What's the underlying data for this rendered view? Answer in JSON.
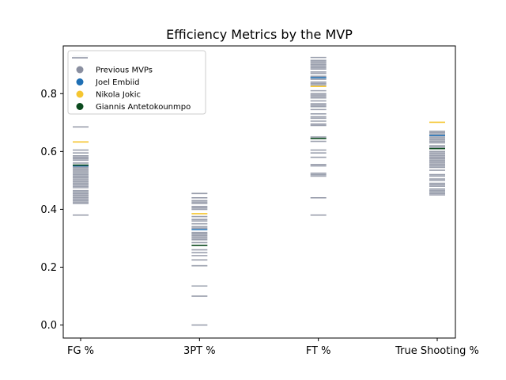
{
  "chart_data": {
    "type": "scatter",
    "title": "Efficiency Metrics by the MVP",
    "xlabel": "",
    "ylabel": "",
    "categories": [
      "FG %",
      "3PT %",
      "FT %",
      "True Shooting %"
    ],
    "ylim": [
      -0.045,
      0.965
    ],
    "yticks": [
      0.0,
      0.2,
      0.4,
      0.6,
      0.8
    ],
    "ytick_labels": [
      "0.0",
      "0.2",
      "0.4",
      "0.6",
      "0.8"
    ],
    "grid": false,
    "marker": "horizontal-line",
    "legend_position": "top-left",
    "colors": {
      "Previous MVPs": "#8a8fa0",
      "Joel Embiid": "#1f6fb4",
      "Nikola Jokic": "#f5c631",
      "Giannis Antetokounmpo": "#0b4a1e"
    },
    "series": [
      {
        "name": "Previous MVPs",
        "values": [
          [
            0.38,
            0.42,
            0.425,
            0.43,
            0.435,
            0.44,
            0.445,
            0.45,
            0.455,
            0.46,
            0.465,
            0.475,
            0.48,
            0.485,
            0.49,
            0.495,
            0.5,
            0.505,
            0.51,
            0.515,
            0.52,
            0.525,
            0.53,
            0.535,
            0.54,
            0.545,
            0.55,
            0.56,
            0.57,
            0.575,
            0.58,
            0.585,
            0.595,
            0.605,
            0.685,
            0.93
          ],
          [
            0.0,
            0.1,
            0.135,
            0.205,
            0.225,
            0.24,
            0.25,
            0.26,
            0.285,
            0.295,
            0.3,
            0.305,
            0.31,
            0.315,
            0.32,
            0.335,
            0.34,
            0.35,
            0.36,
            0.365,
            0.375,
            0.4,
            0.405,
            0.41,
            0.42,
            0.425,
            0.43,
            0.44,
            0.455
          ],
          [
            0.38,
            0.44,
            0.515,
            0.52,
            0.525,
            0.55,
            0.555,
            0.58,
            0.595,
            0.605,
            0.635,
            0.65,
            0.69,
            0.695,
            0.705,
            0.715,
            0.72,
            0.73,
            0.745,
            0.755,
            0.76,
            0.765,
            0.775,
            0.785,
            0.79,
            0.795,
            0.8,
            0.81,
            0.83,
            0.835,
            0.84,
            0.85,
            0.855,
            0.86,
            0.87,
            0.875,
            0.885,
            0.89,
            0.895,
            0.9,
            0.905,
            0.91,
            0.915,
            0.925
          ],
          [
            0.45,
            0.455,
            0.46,
            0.465,
            0.47,
            0.48,
            0.485,
            0.49,
            0.5,
            0.505,
            0.515,
            0.52,
            0.535,
            0.545,
            0.55,
            0.555,
            0.56,
            0.565,
            0.57,
            0.575,
            0.58,
            0.585,
            0.59,
            0.595,
            0.6,
            0.61,
            0.615,
            0.62,
            0.63,
            0.635,
            0.64,
            0.645,
            0.65,
            0.655,
            0.66,
            0.665,
            0.67
          ]
        ]
      },
      {
        "name": "Joel Embiid",
        "values": [
          [
            0.55
          ],
          [
            0.33
          ],
          [
            0.855
          ],
          [
            0.655
          ]
        ]
      },
      {
        "name": "Nikola Jokic",
        "values": [
          [
            0.633
          ],
          [
            0.385
          ],
          [
            0.825
          ],
          [
            0.701
          ]
        ]
      },
      {
        "name": "Giannis Antetokounmpo",
        "values": [
          [
            0.553
          ],
          [
            0.275
          ],
          [
            0.645
          ],
          [
            0.61
          ]
        ]
      }
    ]
  }
}
